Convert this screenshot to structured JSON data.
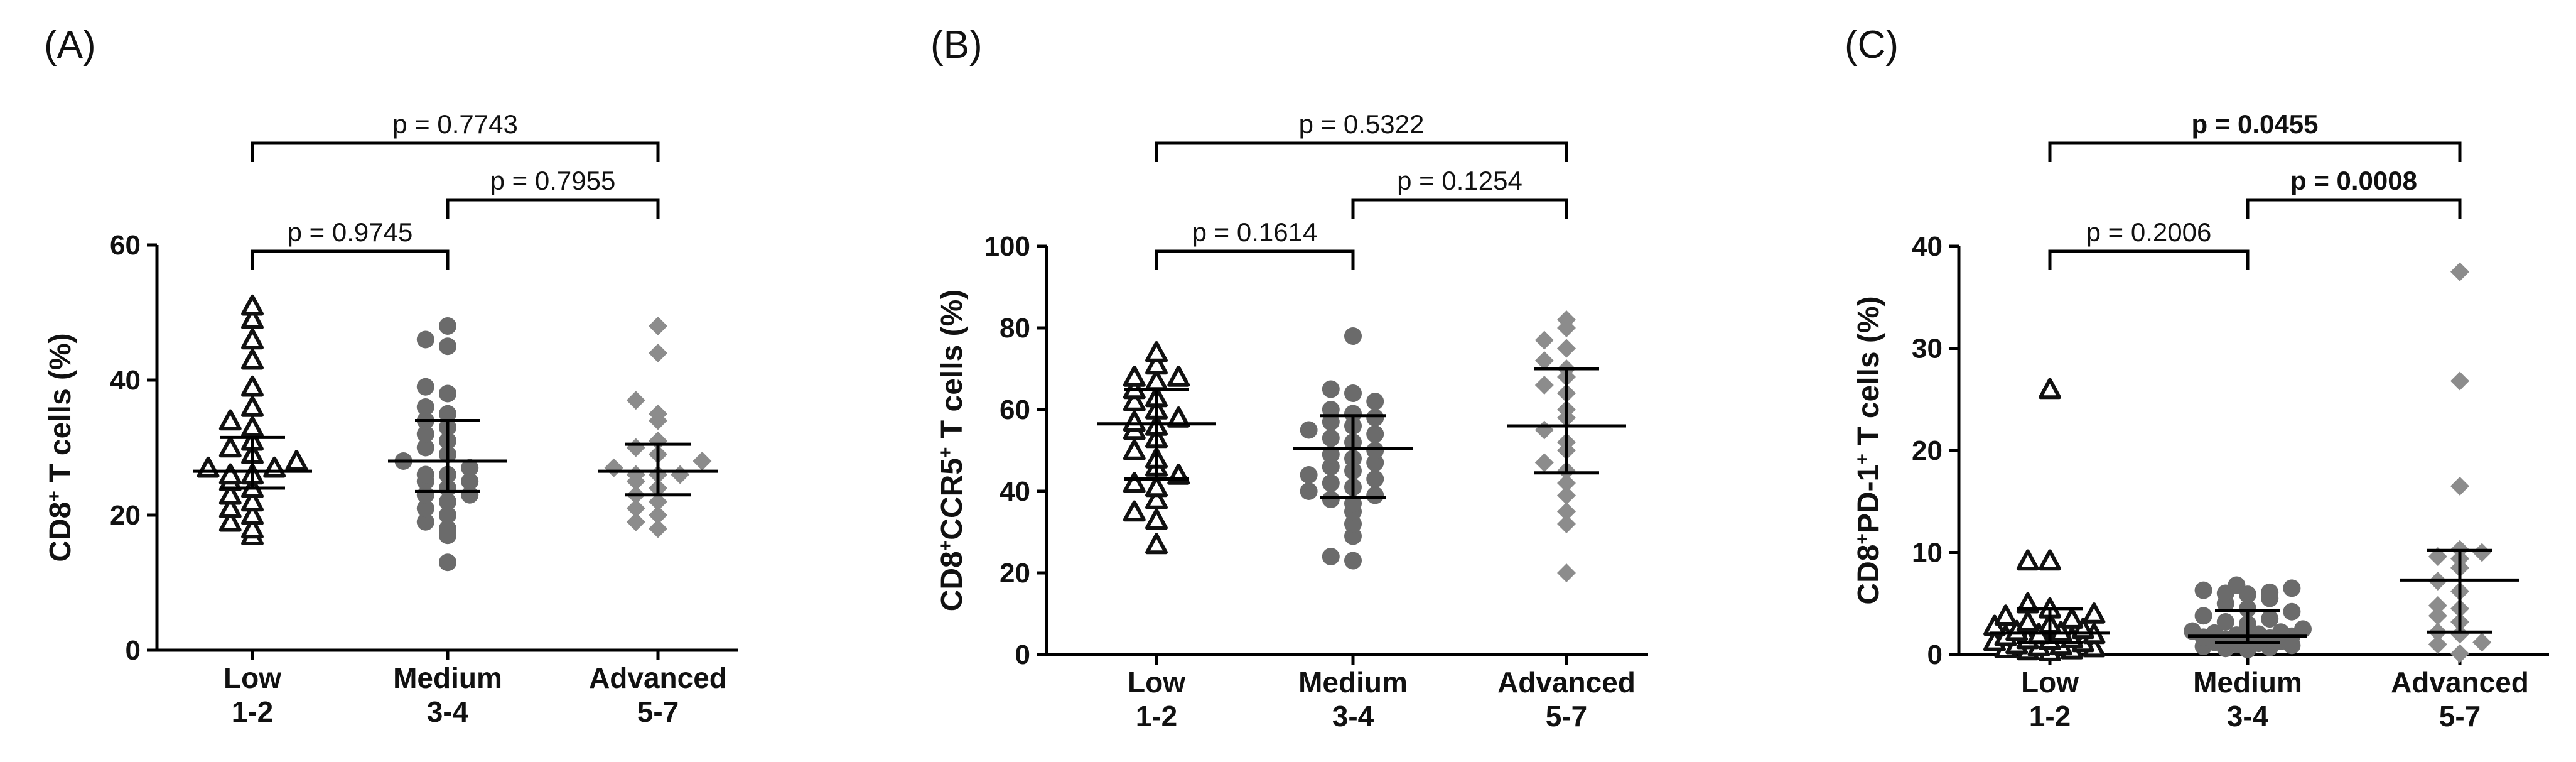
{
  "figure": {
    "layout": "three scatter panels side by side"
  },
  "chart_data": [
    {
      "type": "scatter",
      "panel_label": "(A)",
      "ylabel_main": "CD8",
      "ylabel_sup": "+",
      "ylabel_rest": " T cells (%)",
      "ylim": [
        0,
        60
      ],
      "yticks": [
        0,
        20,
        40,
        60
      ],
      "categories": [
        {
          "line1": "Low",
          "line2": "1-2"
        },
        {
          "line1": "Medium",
          "line2": "3-4"
        },
        {
          "line1": "Advanced",
          "line2": "5-7"
        }
      ],
      "series": [
        {
          "name": "Low 1-2",
          "marker": "triangle",
          "color": "#111111",
          "values": [
            51,
            49,
            46,
            43,
            39,
            36,
            34,
            33,
            31,
            30,
            29,
            28,
            27,
            27,
            26,
            26,
            25,
            24,
            23,
            22,
            21,
            20,
            19,
            18,
            17
          ],
          "median": 26.5,
          "q1": 24,
          "q3": 31.5
        },
        {
          "name": "Medium 3-4",
          "marker": "circle",
          "color": "#6b6b6b",
          "values": [
            48,
            46,
            45,
            39,
            38,
            36,
            35,
            34,
            33,
            32,
            31,
            30,
            29,
            28,
            27,
            26,
            26,
            25,
            25,
            24,
            23,
            23,
            22,
            21,
            20,
            19,
            18,
            17,
            13
          ],
          "median": 28,
          "q1": 23.5,
          "q3": 34
        },
        {
          "name": "Advanced 5-7",
          "marker": "diamond",
          "color": "#8c8c8c",
          "values": [
            48,
            44,
            37,
            35,
            34,
            31,
            30,
            29,
            28,
            27,
            26,
            26,
            26,
            25,
            24,
            23,
            22,
            21,
            20,
            19,
            18
          ],
          "median": 26.5,
          "q1": 23,
          "q3": 30.5
        }
      ],
      "comparisons": [
        {
          "from": 0,
          "to": 1,
          "text": "p = 0.9745",
          "bold": false
        },
        {
          "from": 1,
          "to": 2,
          "text": "p = 0.7955",
          "bold": false
        },
        {
          "from": 0,
          "to": 2,
          "text": "p = 0.7743",
          "bold": false
        }
      ]
    },
    {
      "type": "scatter",
      "panel_label": "(B)",
      "ylabel_main": "CD8",
      "ylabel_sup": "+",
      "ylabel_rest": "CCR5",
      "ylabel_sup2": "+",
      "ylabel_rest2": " T cells (%)",
      "ylim": [
        0,
        100
      ],
      "yticks": [
        0,
        20,
        40,
        60,
        80,
        100
      ],
      "categories": [
        {
          "line1": "Low",
          "line2": "1-2"
        },
        {
          "line1": "Medium",
          "line2": "3-4"
        },
        {
          "line1": "Advanced",
          "line2": "5-7"
        }
      ],
      "series": [
        {
          "name": "Low 1-2",
          "marker": "triangle",
          "color": "#111111",
          "values": [
            74,
            71,
            68,
            68,
            67,
            65,
            63,
            62,
            60,
            58,
            57,
            56,
            55,
            53,
            50,
            48,
            46,
            44,
            42,
            41,
            38,
            35,
            33,
            27
          ],
          "median": 56.5,
          "q1": 43,
          "q3": 65
        },
        {
          "name": "Medium 3-4",
          "marker": "circle",
          "color": "#6b6b6b",
          "values": [
            78,
            65,
            64,
            62,
            60,
            59,
            58,
            57,
            56,
            55,
            54,
            53,
            52,
            50,
            49,
            48,
            47,
            46,
            45,
            44,
            43,
            42,
            41,
            40,
            39,
            38,
            37,
            35,
            32,
            29,
            24,
            23
          ],
          "median": 50.5,
          "q1": 38.5,
          "q3": 58.5
        },
        {
          "name": "Advanced 5-7",
          "marker": "diamond",
          "color": "#8c8c8c",
          "values": [
            82,
            80,
            77,
            75,
            72,
            70,
            68,
            66,
            64,
            60,
            58,
            55,
            52,
            50,
            47,
            45,
            42,
            39,
            35,
            32,
            20
          ],
          "median": 56,
          "q1": 44.5,
          "q3": 70
        }
      ],
      "comparisons": [
        {
          "from": 0,
          "to": 1,
          "text": "p = 0.1614",
          "bold": false
        },
        {
          "from": 1,
          "to": 2,
          "text": "p = 0.1254",
          "bold": false
        },
        {
          "from": 0,
          "to": 2,
          "text": "p = 0.5322",
          "bold": false
        }
      ]
    },
    {
      "type": "scatter",
      "panel_label": "(C)",
      "ylabel_main": "CD8",
      "ylabel_sup": "+",
      "ylabel_rest": "PD-1",
      "ylabel_sup2": "+",
      "ylabel_rest2": " T cells (%)",
      "ylim": [
        0,
        40
      ],
      "yticks": [
        0,
        10,
        20,
        30,
        40
      ],
      "categories": [
        {
          "line1": "Low",
          "line2": "1-2"
        },
        {
          "line1": "Medium",
          "line2": "3-4"
        },
        {
          "line1": "Advanced",
          "line2": "5-7"
        }
      ],
      "series": [
        {
          "name": "Low 1-2",
          "marker": "triangle",
          "color": "#111111",
          "values": [
            26,
            9.2,
            9.2,
            5,
            4.5,
            4,
            3.8,
            3.5,
            3.2,
            3,
            2.8,
            2.5,
            2.3,
            2.2,
            2,
            2,
            1.8,
            1.6,
            1.5,
            1.4,
            1.3,
            1.2,
            1,
            0.9,
            0.8,
            0.7,
            0.6,
            0.5,
            0.4,
            0.3
          ],
          "median": 2.1,
          "q1": 1.2,
          "q3": 4.5
        },
        {
          "name": "Medium 3-4",
          "marker": "circle",
          "color": "#6b6b6b",
          "values": [
            6.8,
            6.5,
            6.3,
            6.1,
            6,
            5.9,
            5.5,
            5,
            4.5,
            4.2,
            3.8,
            3.5,
            3.2,
            3,
            2.8,
            2.5,
            2.3,
            2.2,
            2.1,
            2,
            1.9,
            1.8,
            1.7,
            1.6,
            1.5,
            1.4,
            1.3,
            1.2,
            1.1,
            1,
            0.9,
            0.8,
            0.7,
            0.6,
            0.5
          ],
          "median": 1.8,
          "q1": 1.2,
          "q3": 4.3
        },
        {
          "name": "Advanced 5-7",
          "marker": "diamond",
          "color": "#8c8c8c",
          "values": [
            37.5,
            26.8,
            16.5,
            10.3,
            10,
            9.6,
            9.4,
            8.5,
            7.2,
            6.2,
            4.8,
            4.5,
            3.8,
            3.2,
            2.2,
            2,
            1.2,
            1.0,
            0.1
          ],
          "median": 7.3,
          "q1": 2.2,
          "q3": 10.2
        }
      ],
      "comparisons": [
        {
          "from": 0,
          "to": 1,
          "text": "p = 0.2006",
          "bold": false
        },
        {
          "from": 1,
          "to": 2,
          "text": "p = 0.0008",
          "bold": true
        },
        {
          "from": 0,
          "to": 2,
          "text": "p = 0.0455",
          "bold": true
        }
      ]
    }
  ]
}
